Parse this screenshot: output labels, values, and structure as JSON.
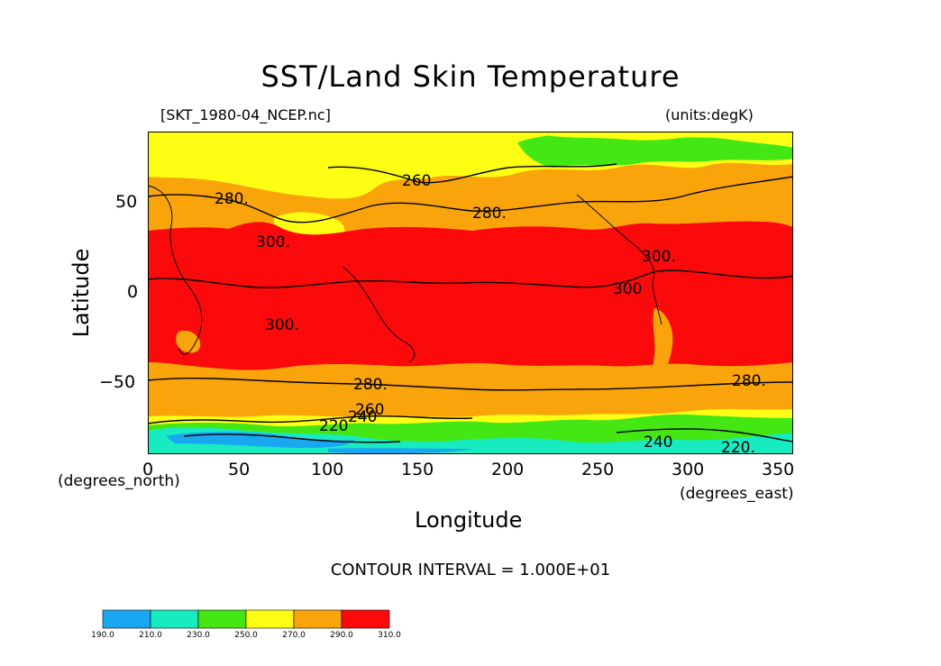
{
  "title": "SST/Land Skin Temperature",
  "file_label": "[SKT_1980-04_NCEP.nc]",
  "units_label": "(units:degK)",
  "y_axis_label": "Latitude",
  "x_axis_label": "Longitude",
  "y_unit_label": "(degrees_north)",
  "x_unit_label": "(degrees_east)",
  "contour_interval": "CONTOUR INTERVAL = 1.000E+01",
  "x_ticks": [
    "0",
    "50",
    "100",
    "150",
    "200",
    "250",
    "300",
    "350"
  ],
  "y_ticks": [
    "50",
    "0",
    "−50"
  ],
  "contour_labels": [
    "280.",
    "260",
    "280.",
    "300.",
    "300.",
    "300.",
    "300",
    "280.",
    "280.",
    "220",
    "240",
    "260",
    "240",
    "220."
  ],
  "colorbar": {
    "ticks": [
      "190.0",
      "210.0",
      "230.0",
      "250.0",
      "270.0",
      "290.0",
      "310.0"
    ],
    "colors": [
      "#1aa7f2",
      "#17ecc0",
      "#44e614",
      "#fefe14",
      "#f9a40a",
      "#fa0a0a"
    ]
  },
  "map": {
    "lon_range": [
      0,
      360
    ],
    "lat_range": [
      -90,
      90
    ],
    "shaded_levels": [
      190,
      210,
      230,
      250,
      270,
      290,
      310
    ],
    "level_colors": {
      "190-210": "#1aa7f2",
      "210-230": "#17ecc0",
      "230-250": "#44e614",
      "250-270": "#fefe14",
      "270-290": "#f9a40a",
      "290-310": "#fa0a0a"
    }
  }
}
